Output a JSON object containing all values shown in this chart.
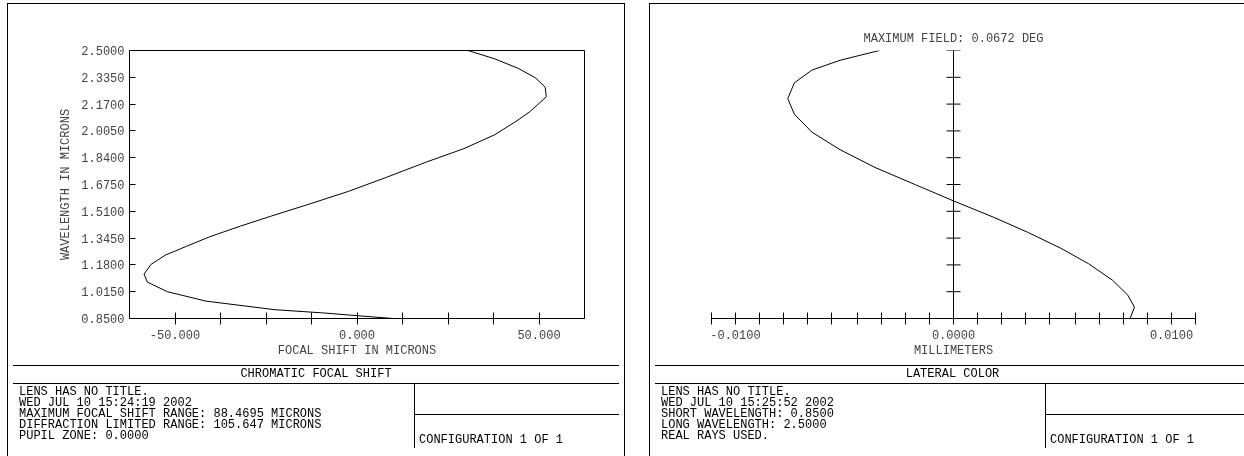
{
  "chart_data": [
    {
      "type": "line",
      "title": "CHROMATIC FOCAL SHIFT",
      "xlabel": "FOCAL SHIFT IN MICRONS",
      "ylabel": "WAVELENGTH IN MICRONS",
      "series": [
        {
          "color": "#000000",
          "x": [
            9.8,
            -9.7,
            -22.5,
            -41.5,
            -52.1,
            -57.6,
            -58.5,
            -56.6,
            -52.6,
            -46.8,
            -40.5,
            -32.0,
            -23.5,
            -12.9,
            -2.3,
            8.3,
            18.9,
            29.4,
            37.9,
            43.7,
            47.4,
            50.3,
            52.0,
            51.7,
            49.0,
            44.3,
            37.9,
            30.5
          ],
          "values": [
            0.85,
            0.885,
            0.904,
            0.957,
            1.015,
            1.074,
            1.123,
            1.183,
            1.241,
            1.295,
            1.353,
            1.419,
            1.481,
            1.556,
            1.633,
            1.721,
            1.812,
            1.896,
            1.982,
            2.064,
            2.122,
            2.18,
            2.215,
            2.274,
            2.332,
            2.39,
            2.448,
            2.5
          ]
        }
      ],
      "xlim": [
        -62.5,
        62.5
      ],
      "xticks": [
        {
          "value": -50,
          "label": "-50.000"
        },
        {
          "value": -37.5,
          "label": null
        },
        {
          "value": -25,
          "label": null
        },
        {
          "value": -12.5,
          "label": null
        },
        {
          "value": 0,
          "label": "0.000"
        },
        {
          "value": 12.5,
          "label": null
        },
        {
          "value": 25,
          "label": null
        },
        {
          "value": 37.5,
          "label": null
        },
        {
          "value": 50,
          "label": "50.000"
        }
      ],
      "ylim": [
        0.85,
        2.5
      ],
      "yticks": [
        {
          "value": 0.85,
          "label": "0.8500"
        },
        {
          "value": 1.015,
          "label": "1.0150"
        },
        {
          "value": 1.18,
          "label": "1.1800"
        },
        {
          "value": 1.345,
          "label": "1.3450"
        },
        {
          "value": 1.51,
          "label": "1.5100"
        },
        {
          "value": 1.675,
          "label": "1.6750"
        },
        {
          "value": 1.84,
          "label": "1.8400"
        },
        {
          "value": 2.005,
          "label": "2.0050"
        },
        {
          "value": 2.17,
          "label": "2.1700"
        },
        {
          "value": 2.335,
          "label": "2.3350"
        },
        {
          "value": 2.5,
          "label": "2.5000"
        }
      ],
      "annotations": [
        "LENS HAS NO TITLE.",
        "WED JUL 10 15:24:19 2002",
        "MAXIMUM FOCAL SHIFT RANGE: 88.4695 MICRONS",
        "DIFFRACTION LIMITED RANGE: 105.647 MICRONS",
        "PUPIL ZONE: 0.0000",
        "CONFIGURATION 1 OF 1"
      ]
    },
    {
      "type": "line",
      "title": "LATERAL COLOR",
      "subtitle": "MAXIMUM FIELD: 0.0672 DEG",
      "xlabel": "MILLIMETERS",
      "series": [
        {
          "color": "#000000",
          "x": [
            0.0081,
            0.0083,
            0.008,
            0.0073,
            0.0062,
            0.0049,
            0.0034,
            0.0019,
            0.0,
            -0.0017,
            -0.0036,
            -0.0052,
            -0.0065,
            -0.0073,
            -0.0076,
            -0.0073,
            -0.0065,
            -0.0052,
            -0.0034
          ],
          "values": [
            0.85,
            0.92,
            0.993,
            1.085,
            1.187,
            1.284,
            1.381,
            1.47,
            1.574,
            1.671,
            1.78,
            1.889,
            1.998,
            2.108,
            2.204,
            2.301,
            2.379,
            2.44,
            2.5
          ]
        }
      ],
      "xlim": [
        -0.0111,
        0.0111
      ],
      "xticks": [
        {
          "value": -0.0111,
          "label": null
        },
        {
          "value": -0.01,
          "label": "-0.0100"
        },
        {
          "value": -0.0089,
          "label": null
        },
        {
          "value": -0.0078,
          "label": null
        },
        {
          "value": -0.0067,
          "label": null
        },
        {
          "value": -0.0056,
          "label": null
        },
        {
          "value": -0.0044,
          "label": null
        },
        {
          "value": -0.0033,
          "label": null
        },
        {
          "value": -0.0022,
          "label": null
        },
        {
          "value": -0.0011,
          "label": null
        },
        {
          "value": 0,
          "label": "0.0000"
        },
        {
          "value": 0.0011,
          "label": null
        },
        {
          "value": 0.0022,
          "label": null
        },
        {
          "value": 0.0033,
          "label": null
        },
        {
          "value": 0.0044,
          "label": null
        },
        {
          "value": 0.0056,
          "label": null
        },
        {
          "value": 0.0067,
          "label": null
        },
        {
          "value": 0.0078,
          "label": null
        },
        {
          "value": 0.0089,
          "label": null
        },
        {
          "value": 0.01,
          "label": "0.0100"
        },
        {
          "value": 0.0111,
          "label": null
        }
      ],
      "ylim": [
        0.85,
        2.5
      ],
      "yticks": [
        {
          "value": 0.85,
          "label": null
        },
        {
          "value": 1.015,
          "label": null
        },
        {
          "value": 1.18,
          "label": null
        },
        {
          "value": 1.345,
          "label": null
        },
        {
          "value": 1.51,
          "label": null
        },
        {
          "value": 1.675,
          "label": null
        },
        {
          "value": 1.84,
          "label": null
        },
        {
          "value": 2.005,
          "label": null
        },
        {
          "value": 2.17,
          "label": null
        },
        {
          "value": 2.335,
          "label": null
        },
        {
          "value": 2.5,
          "label": null
        }
      ],
      "tick_labels": "x",
      "annotations": [
        "LENS HAS NO TITLE.",
        "WED JUL 10 15:25:52 2002",
        "SHORT WAVELENGTH: 0.8500",
        "LONG WAVELENGTH: 2.5000",
        "REAL RAYS USED.",
        "CONFIGURATION 1 OF 1"
      ]
    }
  ]
}
